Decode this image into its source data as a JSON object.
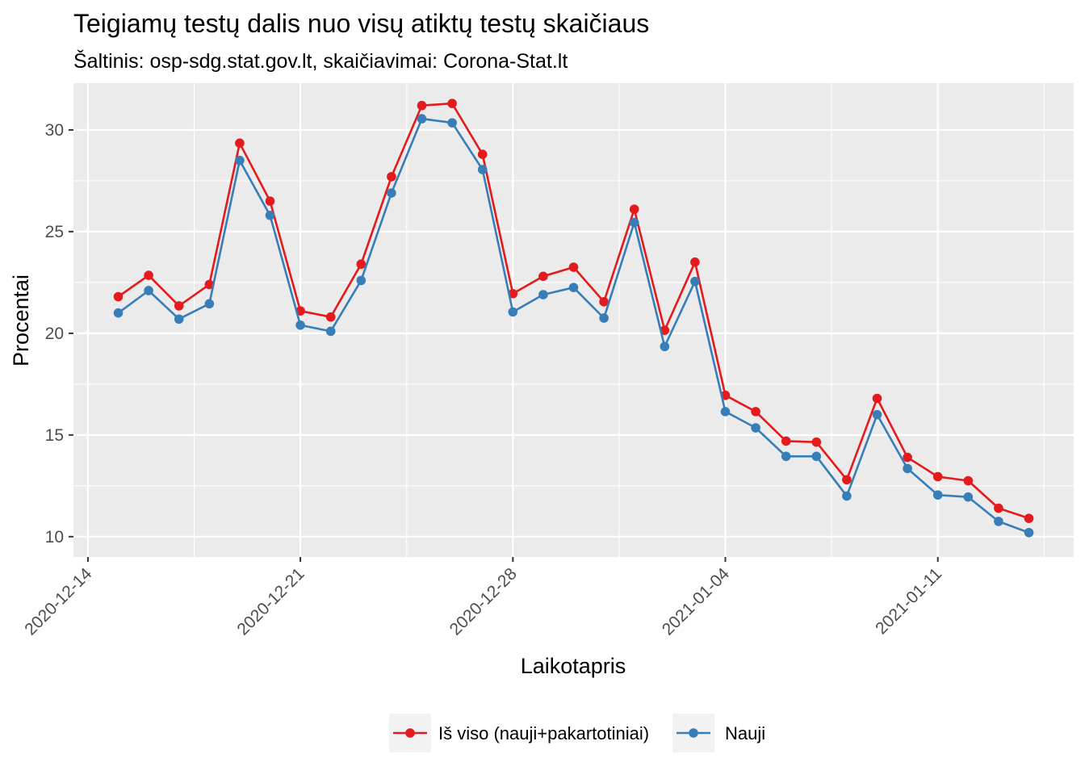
{
  "chart_data": {
    "type": "line",
    "title": "Teigiamų testų dalis nuo visų atiktų testų skaičiaus",
    "subtitle": "Šaltinis: osp-sdg.stat.gov.lt, skaičiavimai: Corona-Stat.lt",
    "xlabel": "Laikotapris",
    "ylabel": "Procentai",
    "ylim": [
      9.0,
      32.3
    ],
    "y_ticks": [
      10,
      15,
      20,
      25,
      30
    ],
    "x_tick_labels": [
      "2020-12-14",
      "2020-12-21",
      "2020-12-28",
      "2021-01-04",
      "2021-01-11"
    ],
    "x_start_date": "2020-12-15",
    "legend_position": "bottom",
    "series": [
      {
        "name": "Iš viso (nauji+pakartotiniai)",
        "color": "#e41a1c",
        "values": [
          21.8,
          22.85,
          21.35,
          22.4,
          29.35,
          26.5,
          21.1,
          20.8,
          23.4,
          27.7,
          31.2,
          31.3,
          28.8,
          21.95,
          22.8,
          23.25,
          21.55,
          26.1,
          20.15,
          23.5,
          16.95,
          16.15,
          14.7,
          14.65,
          12.8,
          16.8,
          13.9,
          12.95,
          12.75,
          11.4,
          10.9
        ]
      },
      {
        "name": "Nauji",
        "color": "#377eb8",
        "values": [
          21.0,
          22.1,
          20.7,
          21.45,
          28.5,
          25.8,
          20.4,
          20.1,
          22.6,
          26.9,
          30.55,
          30.35,
          28.05,
          21.05,
          21.9,
          22.25,
          20.75,
          25.45,
          19.35,
          22.55,
          16.15,
          15.35,
          13.95,
          13.95,
          12.0,
          16.0,
          13.35,
          12.05,
          11.95,
          10.75,
          10.2
        ]
      }
    ]
  }
}
